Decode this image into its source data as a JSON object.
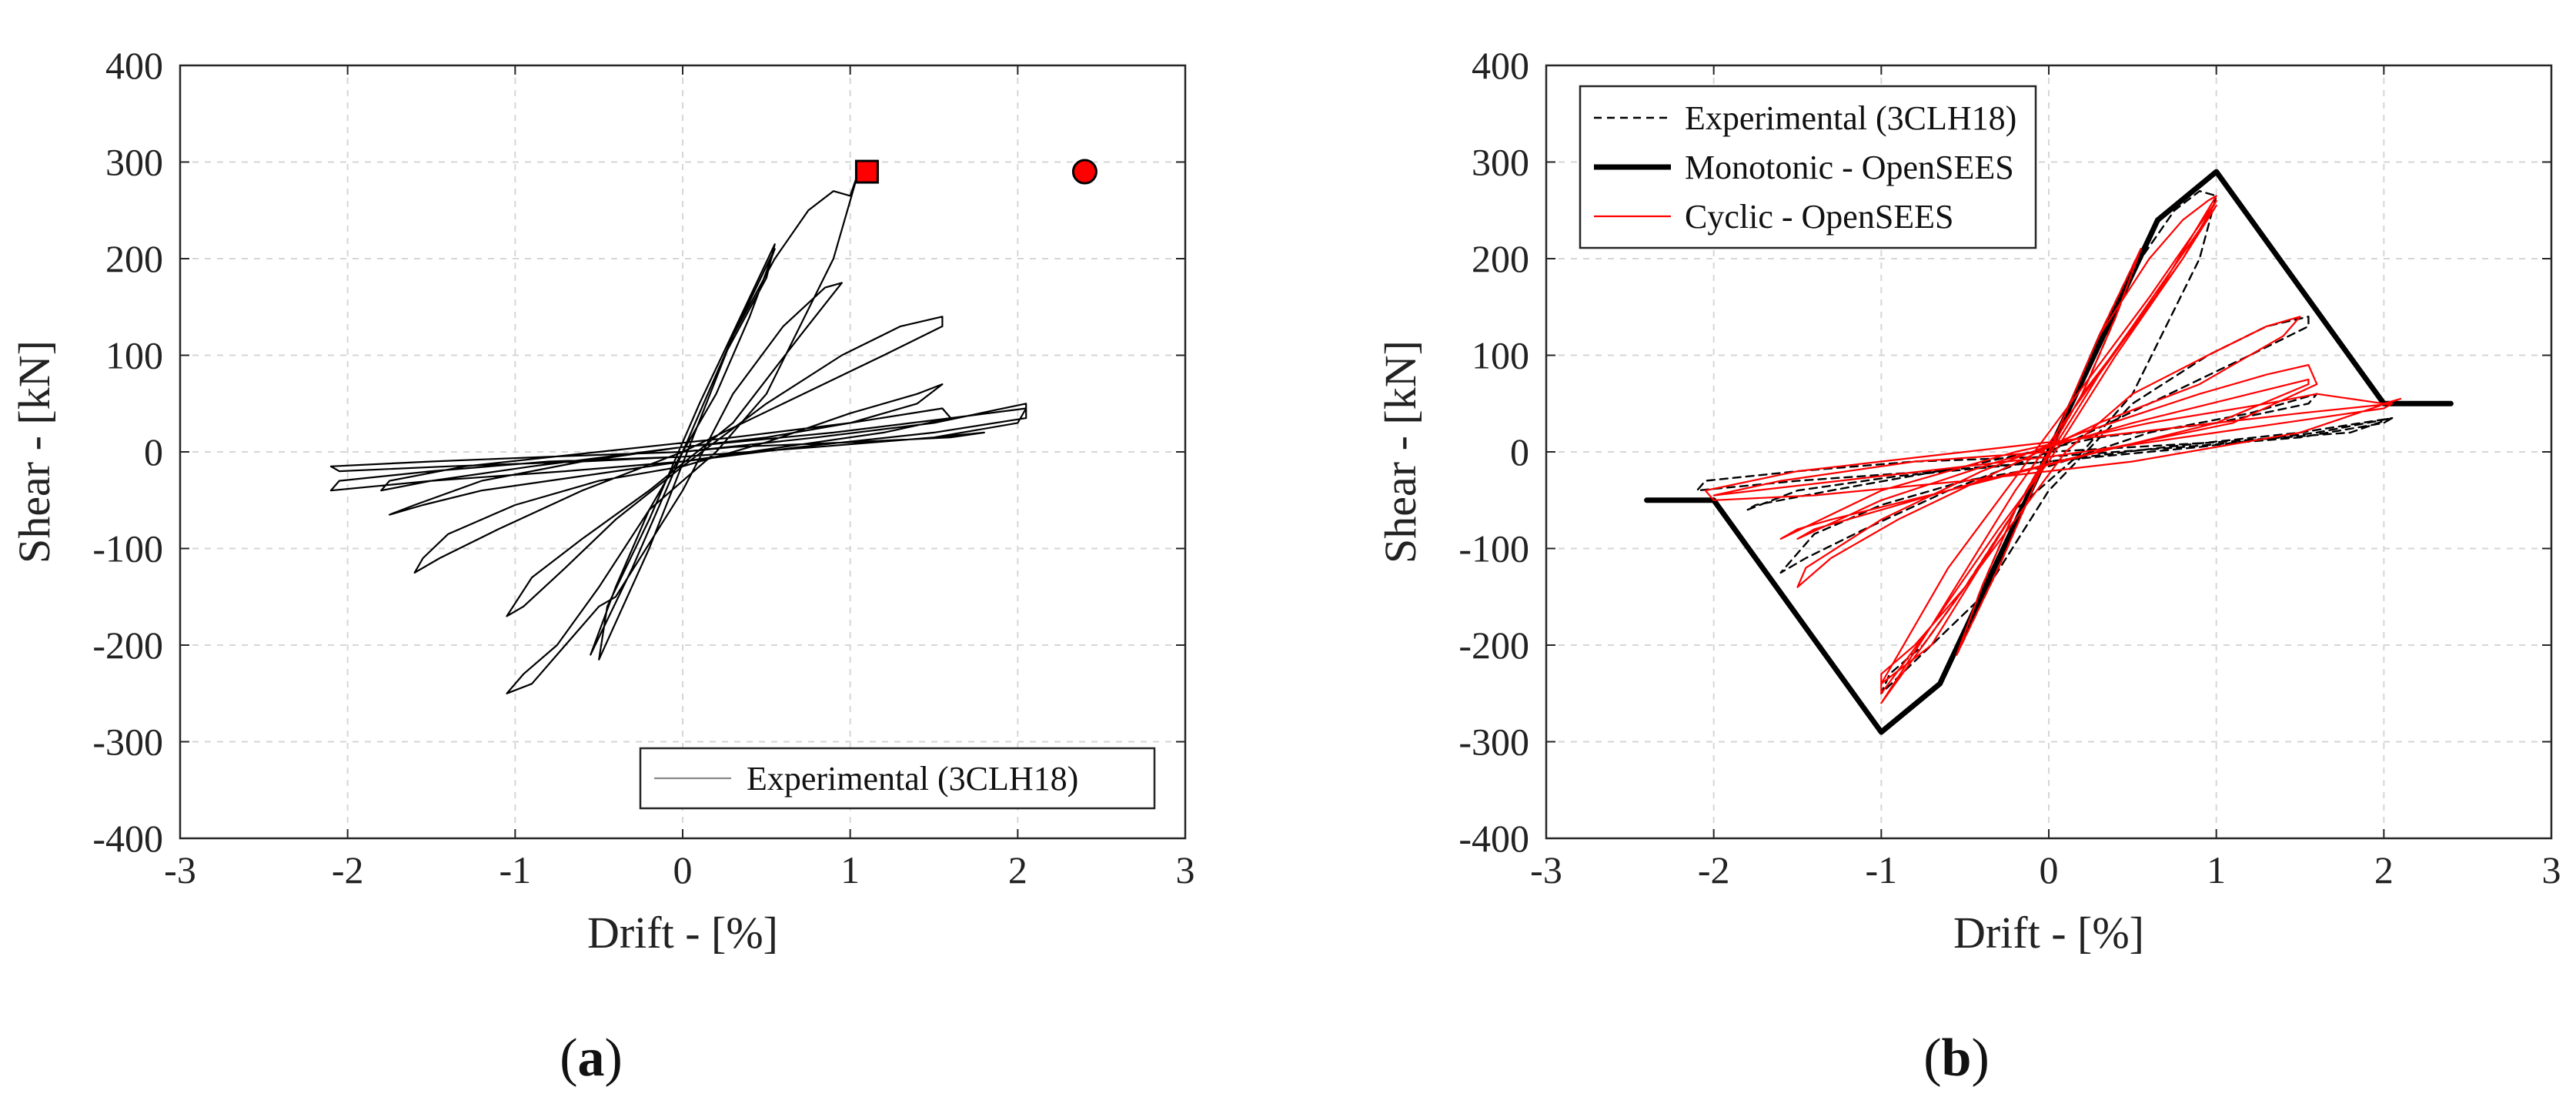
{
  "chart_data": [
    {
      "type": "line",
      "caption": "a",
      "xlabel": "Drift - [%]",
      "ylabel": "Shear - [kN]",
      "xlim": [
        -3,
        3
      ],
      "ylim": [
        -400,
        400
      ],
      "xticks": [
        -3,
        -2,
        -1,
        0,
        1,
        2,
        3
      ],
      "yticks": [
        -400,
        -300,
        -200,
        -100,
        0,
        100,
        200,
        300,
        400
      ],
      "grid": true,
      "legend_position": "bottom-right",
      "series": [
        {
          "name": "Experimental (3CLH18)",
          "style": "solid-thin",
          "color": "#000000",
          "x": [
            0,
            0.2,
            0.4,
            0.55,
            0.3,
            0.0,
            -0.2,
            -0.4,
            -0.55,
            -0.3,
            0.0,
            0.25,
            0.5,
            0.55,
            0.1,
            -0.2,
            -0.45,
            -0.5,
            -0.2,
            0.05,
            0.3,
            0.55,
            0.75,
            0.9,
            1.0,
            1.05,
            0.9,
            0.5,
            0.2,
            -0.2,
            -0.5,
            -0.75,
            -0.95,
            -1.05,
            -0.9,
            -0.7,
            -0.5,
            -0.4,
            0.0,
            0.3,
            0.6,
            0.85,
            0.95,
            0.7,
            0.3,
            -0.2,
            -0.6,
            -0.9,
            -1.05,
            -0.95,
            -0.7,
            -0.4,
            0.0,
            0.5,
            0.95,
            1.3,
            1.55,
            1.55,
            1.2,
            0.6,
            0.0,
            -0.6,
            -1.1,
            -1.45,
            -1.6,
            -1.55,
            -1.4,
            -1.0,
            -0.5,
            0.0,
            0.5,
            1.0,
            1.4,
            1.55,
            1.4,
            1.0,
            0.5,
            0.0,
            -0.6,
            -1.2,
            -1.6,
            -1.75,
            -1.55,
            -1.2,
            -0.6,
            0.0,
            0.6,
            1.2,
            1.6,
            1.55,
            1.0,
            0.3,
            -0.5,
            -1.3,
            -1.75,
            -1.8,
            -1.5,
            -0.9,
            0.0,
            0.9,
            1.6,
            2.05,
            2.0,
            1.5,
            0.8,
            0.0,
            -0.8,
            -1.5,
            -2.05,
            -2.1,
            -1.5,
            -0.7,
            0.0,
            0.7,
            1.5,
            2.05,
            2.05,
            1.5,
            0.8,
            0.0,
            -0.8,
            -1.5,
            -2.1,
            -2.05,
            -1.4,
            -0.6,
            0.0,
            0.8,
            1.5,
            1.8,
            1.6,
            1.0,
            0.3,
            0.0
          ],
          "y": [
            0,
            60,
            140,
            210,
            120,
            0,
            -60,
            -140,
            -210,
            -120,
            0,
            100,
            180,
            215,
            50,
            -70,
            -160,
            -215,
            -100,
            10,
            120,
            200,
            250,
            270,
            265,
            290,
            200,
            60,
            0,
            -60,
            -140,
            -200,
            -230,
            -250,
            -240,
            -200,
            -160,
            -150,
            -40,
            60,
            130,
            170,
            175,
            120,
            30,
            -40,
            -90,
            -130,
            -170,
            -160,
            -120,
            -70,
            -15,
            50,
            100,
            130,
            140,
            130,
            100,
            50,
            0,
            -40,
            -80,
            -110,
            -125,
            -110,
            -85,
            -55,
            -30,
            -15,
            10,
            40,
            60,
            70,
            50,
            30,
            15,
            5,
            -10,
            -30,
            -55,
            -65,
            -55,
            -40,
            -25,
            -10,
            5,
            20,
            35,
            45,
            30,
            15,
            0,
            -15,
            -30,
            -40,
            -30,
            -15,
            5,
            20,
            35,
            45,
            30,
            15,
            5,
            -5,
            -10,
            -20,
            -30,
            -40,
            -30,
            -20,
            -10,
            5,
            20,
            35,
            50,
            30,
            15,
            0,
            -5,
            -10,
            -15,
            -20,
            -15,
            -10,
            -5,
            5,
            15,
            20,
            15,
            10,
            5,
            0
          ]
        }
      ],
      "annotations": [
        {
          "marker": "square",
          "x": 1.1,
          "y": 290,
          "color": "#ff0000"
        },
        {
          "marker": "circle",
          "x": 2.4,
          "y": 290,
          "color": "#ff0000"
        }
      ]
    },
    {
      "type": "line",
      "caption": "b",
      "xlabel": "Drift - [%]",
      "ylabel": "Shear - [kN]",
      "xlim": [
        -3,
        3
      ],
      "ylim": [
        -400,
        400
      ],
      "xticks": [
        -3,
        -2,
        -1,
        0,
        1,
        2,
        3
      ],
      "yticks": [
        -400,
        -300,
        -200,
        -100,
        0,
        100,
        200,
        300,
        400
      ],
      "grid": true,
      "legend_position": "top-left",
      "series": [
        {
          "name": "Experimental (3CLH18)",
          "style": "dashed",
          "color": "#000000",
          "x": [
            0,
            0.2,
            0.4,
            0.55,
            0.3,
            0.0,
            -0.2,
            -0.4,
            -0.55,
            -0.3,
            0.0,
            0.3,
            0.55,
            0.75,
            0.9,
            1.0,
            0.9,
            0.5,
            0.2,
            -0.2,
            -0.5,
            -0.75,
            -0.95,
            -1.0,
            -0.7,
            -0.4,
            0.0,
            0.5,
            0.95,
            1.3,
            1.55,
            1.55,
            1.2,
            0.6,
            0.0,
            -0.6,
            -1.1,
            -1.45,
            -1.6,
            -1.4,
            -1.0,
            -0.5,
            0.0,
            0.6,
            1.2,
            1.6,
            1.55,
            1.0,
            0.3,
            -0.5,
            -1.3,
            -1.75,
            -1.8,
            -1.5,
            -0.9,
            0.0,
            0.9,
            1.6,
            2.05,
            2.0,
            1.5,
            0.8,
            0.0,
            -0.8,
            -1.5,
            -2.05,
            -2.1,
            -1.5,
            -0.7,
            0.0,
            0.7,
            1.5,
            2.05,
            1.8,
            1.0,
            0.0
          ],
          "y": [
            0,
            60,
            140,
            210,
            120,
            0,
            -60,
            -140,
            -210,
            -120,
            0,
            120,
            200,
            250,
            270,
            265,
            200,
            60,
            0,
            -60,
            -140,
            -200,
            -230,
            -250,
            -200,
            -150,
            -40,
            50,
            100,
            130,
            140,
            130,
            100,
            50,
            0,
            -40,
            -80,
            -110,
            -125,
            -85,
            -55,
            -30,
            -15,
            20,
            40,
            60,
            50,
            30,
            15,
            -15,
            -40,
            -55,
            -60,
            -40,
            -25,
            -10,
            5,
            20,
            35,
            30,
            15,
            5,
            -5,
            -10,
            -20,
            -30,
            -40,
            -30,
            -20,
            -10,
            5,
            20,
            35,
            20,
            10,
            0
          ]
        },
        {
          "name": "Monotonic - OpenSEES",
          "style": "solid-thick",
          "color": "#000000",
          "x": [
            -2.4,
            -2.0,
            -1.0,
            -0.65,
            0.0,
            0.65,
            1.0,
            2.0,
            2.4
          ],
          "y": [
            -50,
            -50,
            -290,
            -240,
            0,
            240,
            290,
            50,
            50
          ]
        },
        {
          "name": "Cyclic - OpenSEES",
          "style": "solid-thin",
          "color": "#ff0000",
          "x": [
            0,
            0.2,
            0.4,
            0.55,
            0.3,
            0.0,
            -0.2,
            -0.4,
            -0.55,
            -0.3,
            0.0,
            0.3,
            0.6,
            0.8,
            0.95,
            1.0,
            0.6,
            0.2,
            -0.2,
            -0.5,
            -0.8,
            -1.0,
            -1.0,
            -0.7,
            -0.3,
            0.0,
            0.4,
            0.8,
            1.0,
            0.6,
            0.0,
            -0.6,
            -1.0,
            -0.7,
            -0.2,
            0.3,
            0.8,
            1.0,
            0.5,
            -0.2,
            -0.7,
            -1.0,
            -0.5,
            0.1,
            0.5,
            0.95,
            1.3,
            1.5,
            1.4,
            0.9,
            0.3,
            -0.3,
            -0.9,
            -1.3,
            -1.5,
            -1.45,
            -1.0,
            -0.4,
            0.2,
            0.9,
            1.3,
            1.55,
            1.6,
            1.1,
            0.4,
            -0.4,
            -1.0,
            -1.4,
            -1.5,
            -1.0,
            -0.3,
            0.5,
            1.2,
            1.55,
            1.55,
            1.0,
            0.3,
            -0.6,
            -1.3,
            -1.5,
            -1.6,
            -1.0,
            -0.2,
            0.6,
            1.3,
            1.6,
            2.0,
            2.1,
            1.5,
            0.5,
            -0.5,
            -1.4,
            -2.0,
            -2.05,
            -1.5,
            -0.5,
            0.5,
            1.5,
            2.05,
            2.0,
            1.0,
            0.0,
            -1.0,
            -2.0,
            -1.6,
            -0.8,
            0.0
          ],
          "y": [
            0,
            60,
            140,
            210,
            120,
            0,
            -60,
            -140,
            -210,
            -120,
            0,
            120,
            200,
            240,
            260,
            265,
            150,
            60,
            -60,
            -140,
            -200,
            -230,
            -250,
            -180,
            -80,
            -10,
            100,
            200,
            260,
            160,
            20,
            -120,
            -240,
            -200,
            -60,
            80,
            200,
            255,
            130,
            -40,
            -180,
            -260,
            -140,
            0,
            60,
            100,
            130,
            140,
            120,
            70,
            30,
            -20,
            -70,
            -110,
            -140,
            -120,
            -70,
            -20,
            20,
            60,
            80,
            90,
            70,
            30,
            5,
            -30,
            -60,
            -80,
            -90,
            -50,
            -10,
            30,
            60,
            75,
            70,
            30,
            0,
            -40,
            -70,
            -80,
            -90,
            -40,
            0,
            30,
            50,
            60,
            50,
            55,
            20,
            -10,
            -30,
            -45,
            -50,
            -40,
            -20,
            0,
            20,
            40,
            50,
            45,
            20,
            -5,
            -25,
            -45,
            -30,
            -10,
            0
          ]
        }
      ]
    }
  ]
}
